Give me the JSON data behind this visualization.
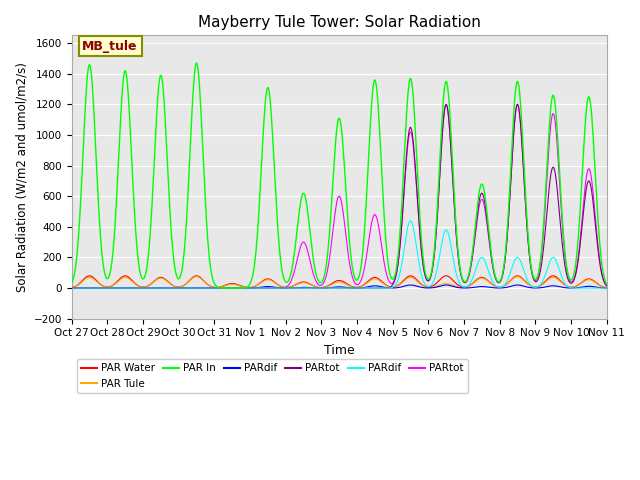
{
  "title": "Mayberry Tule Tower: Solar Radiation",
  "xlabel": "Time",
  "ylabel": "Solar Radiation (W/m2 and umol/m2/s)",
  "ylim": [
    -200,
    1650
  ],
  "background_color": "#e8e8e8",
  "legend_label": "MB_tule",
  "legend_colors": {
    "PAR Water": "#ff0000",
    "PAR Tule": "#ffa500",
    "PAR In": "#00ff00",
    "PARdif": "#0000ff",
    "PARtot": "#800080",
    "PARdif2": "#00ffff",
    "PARtot2": "#ff00ff"
  },
  "series_colors": {
    "par_water": "#ff0000",
    "par_tule": "#ffa500",
    "par_in": "#00ff00",
    "pardif_blue": "#0000ff",
    "partot_purple": "#800080",
    "pardif_cyan": "#00ffff",
    "partot_magenta": "#ff00ff"
  },
  "x_tick_labels": [
    "Oct 27",
    "Oct 28",
    "Oct 29",
    "Oct 30",
    "Oct 31",
    "Nov 1",
    "Nov 2",
    "Nov 3",
    "Nov 4",
    "Nov 5",
    "Nov 6",
    "Nov 7",
    "Nov 8",
    "Nov 9",
    "Nov 10",
    "Nov 11"
  ],
  "x_tick_positions": [
    0,
    1,
    2,
    3,
    4,
    5,
    6,
    7,
    8,
    9,
    10,
    11,
    12,
    13,
    14,
    15
  ],
  "num_days": 15,
  "points_per_day": 48,
  "par_in_peaks": [
    1460,
    1420,
    1390,
    1470,
    0,
    1310,
    620,
    1110,
    1360,
    1370,
    1350,
    680,
    1350,
    1260,
    1250
  ],
  "par_water_peaks": [
    80,
    80,
    70,
    80,
    30,
    60,
    40,
    50,
    70,
    80,
    80,
    70,
    80,
    80,
    60
  ],
  "par_tule_peaks": [
    70,
    70,
    65,
    75,
    25,
    55,
    35,
    40,
    60,
    70,
    30,
    65,
    75,
    70,
    55
  ],
  "partot_purple_peaks": [
    0,
    0,
    0,
    0,
    0,
    0,
    0,
    0,
    0,
    1050,
    1200,
    620,
    1200,
    790,
    700
  ],
  "pardif_cyan_peaks": [
    0,
    0,
    0,
    0,
    0,
    0,
    0,
    0,
    0,
    440,
    380,
    200,
    200,
    200,
    0
  ],
  "partot_magenta_peaks": [
    0,
    0,
    0,
    0,
    0,
    0,
    300,
    600,
    480,
    1020,
    1200,
    580,
    1200,
    1140,
    780
  ],
  "pardif_blue_peaks": [
    0,
    0,
    0,
    0,
    0,
    10,
    5,
    8,
    15,
    20,
    20,
    10,
    20,
    15,
    12
  ]
}
